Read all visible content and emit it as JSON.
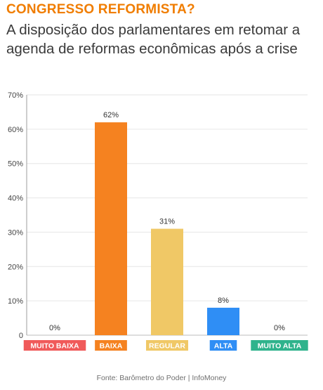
{
  "title": "CONGRESSO REFORMISTA?",
  "subtitle": "A disposição dos parlamentares em retomar a agenda de reformas econômicas após a crise",
  "source": "Fonte: Barômetro do Poder | InfoMoney",
  "chart_data": {
    "type": "bar",
    "categories": [
      "MUITO BAIXA",
      "BAIXA",
      "REGULAR",
      "ALTA",
      "MUITO ALTA"
    ],
    "values": [
      0,
      62,
      31,
      8,
      0
    ],
    "data_labels": [
      "0%",
      "62%",
      "31%",
      "8%",
      "0%"
    ],
    "colors": [
      "#f05a5a",
      "#f58220",
      "#f0c866",
      "#2f8ef5",
      "#2fb38c"
    ],
    "y_ticks": [
      "0",
      "10%",
      "20%",
      "30%",
      "40%",
      "50%",
      "60%",
      "70%"
    ],
    "ylim": [
      0,
      70
    ],
    "grid": true,
    "legend": "none"
  }
}
